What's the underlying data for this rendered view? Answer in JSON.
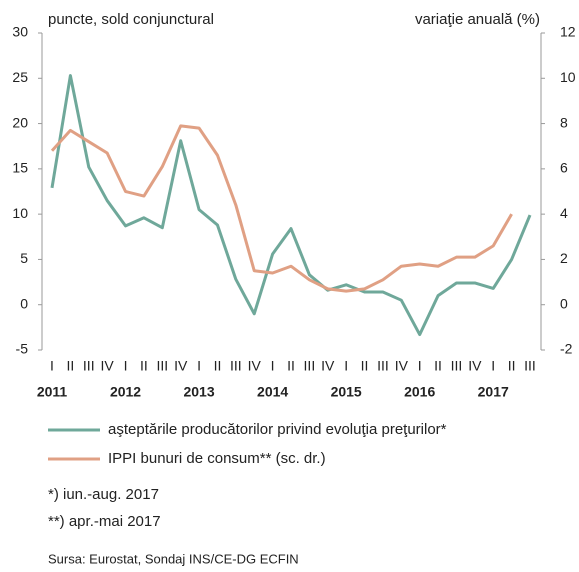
{
  "chart_data": {
    "type": "line",
    "y_label": "puncte, sold conjunctural",
    "y2_label": "variaţie anuală (%)",
    "categories": [
      "I",
      "II",
      "III",
      "IV",
      "I",
      "II",
      "III",
      "IV",
      "I",
      "II",
      "III",
      "IV",
      "I",
      "II",
      "III",
      "IV",
      "I",
      "II",
      "III",
      "IV",
      "I",
      "II",
      "III",
      "IV",
      "I",
      "II",
      "III"
    ],
    "years": [
      "2011",
      "2012",
      "2013",
      "2014",
      "2015",
      "2016",
      "2017"
    ],
    "series": [
      {
        "name": "aşteptările producătorilor privind evoluţia preţurilor*",
        "color": "#6fa89a",
        "values": [
          12.9,
          25.3,
          15.2,
          11.5,
          8.7,
          9.6,
          8.5,
          18.1,
          10.5,
          8.8,
          2.8,
          -1.0,
          5.6,
          8.4,
          3.3,
          1.6,
          2.2,
          1.4,
          1.4,
          0.5,
          -3.3,
          1.0,
          2.4,
          2.4,
          1.8,
          5.0,
          9.9
        ]
      },
      {
        "name": "IPPI bunuri de consum** (sc. dr.)",
        "color": "#e0a084",
        "axis": "y2",
        "values": [
          6.8,
          7.7,
          7.2,
          6.7,
          5.0,
          4.8,
          6.1,
          7.9,
          7.8,
          6.6,
          4.4,
          1.5,
          1.4,
          1.7,
          1.1,
          0.7,
          0.6,
          0.7,
          1.1,
          1.7,
          1.8,
          1.7,
          2.1,
          2.1,
          2.6,
          4.0,
          null
        ]
      }
    ],
    "ylim": [
      -5,
      30
    ],
    "yticks": [
      -5,
      0,
      5,
      10,
      15,
      20,
      25,
      30
    ],
    "y2lim": [
      -2,
      12
    ],
    "y2ticks": [
      -2,
      0,
      2,
      4,
      6,
      8,
      10,
      12
    ],
    "notes": [
      "*) iun.-aug. 2017",
      "**) apr.-mai 2017"
    ],
    "source": "Sursa: Eurostat,  Sondaj INS/CE-DG  ECFIN"
  }
}
